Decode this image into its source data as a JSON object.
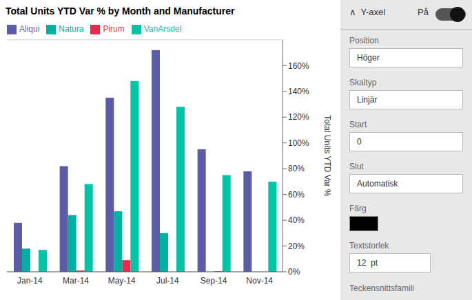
{
  "chart_data": {
    "type": "bar",
    "title": "Total Units YTD Var % by Month and Manufacturer",
    "ylabel": "Total Units YTD Var %",
    "categories": [
      "Jan-14",
      "Mar-14",
      "May-14",
      "Jul-14",
      "Sep-14",
      "Nov-14"
    ],
    "series": [
      {
        "name": "Aliqui",
        "color": "#5b5ea6",
        "values": [
          0.38,
          0.82,
          1.35,
          1.72,
          0.95,
          0.78
        ]
      },
      {
        "name": "Natura",
        "color": "#00b0a0",
        "values": [
          0.18,
          0.44,
          0.47,
          0.3,
          0.0,
          0.0
        ]
      },
      {
        "name": "Pirum",
        "color": "#e8294e",
        "values": [
          0.0,
          0.01,
          0.09,
          0.0,
          0.005,
          0.0
        ]
      },
      {
        "name": "VanArsdel",
        "color": "#00c4a7",
        "values": [
          0.17,
          0.68,
          1.48,
          1.28,
          0.75,
          0.7
        ]
      }
    ],
    "ylim": [
      0,
      1.8
    ],
    "yticks": [
      {
        "value": 0,
        "label": "0%"
      },
      {
        "value": 0.2,
        "label": "20%"
      },
      {
        "value": 0.4,
        "label": "40%"
      },
      {
        "value": 0.6,
        "label": "60%"
      },
      {
        "value": 0.8,
        "label": "80%"
      },
      {
        "value": 1.0,
        "label": "100%"
      },
      {
        "value": 1.2,
        "label": "120%"
      },
      {
        "value": 1.4,
        "label": "140%"
      },
      {
        "value": 1.6,
        "label": "160%"
      }
    ],
    "grid": true,
    "legend": "top-left",
    "annotations": [
      "∧  Y-axel",
      "På",
      "Position",
      "Höger",
      "Skaltyp",
      "Linjär",
      "Start",
      "0",
      "Slut",
      "Automatisk",
      "Färg",
      "Textstorlek",
      "12  pt",
      "Teckensnittsfamili"
    ]
  }
}
